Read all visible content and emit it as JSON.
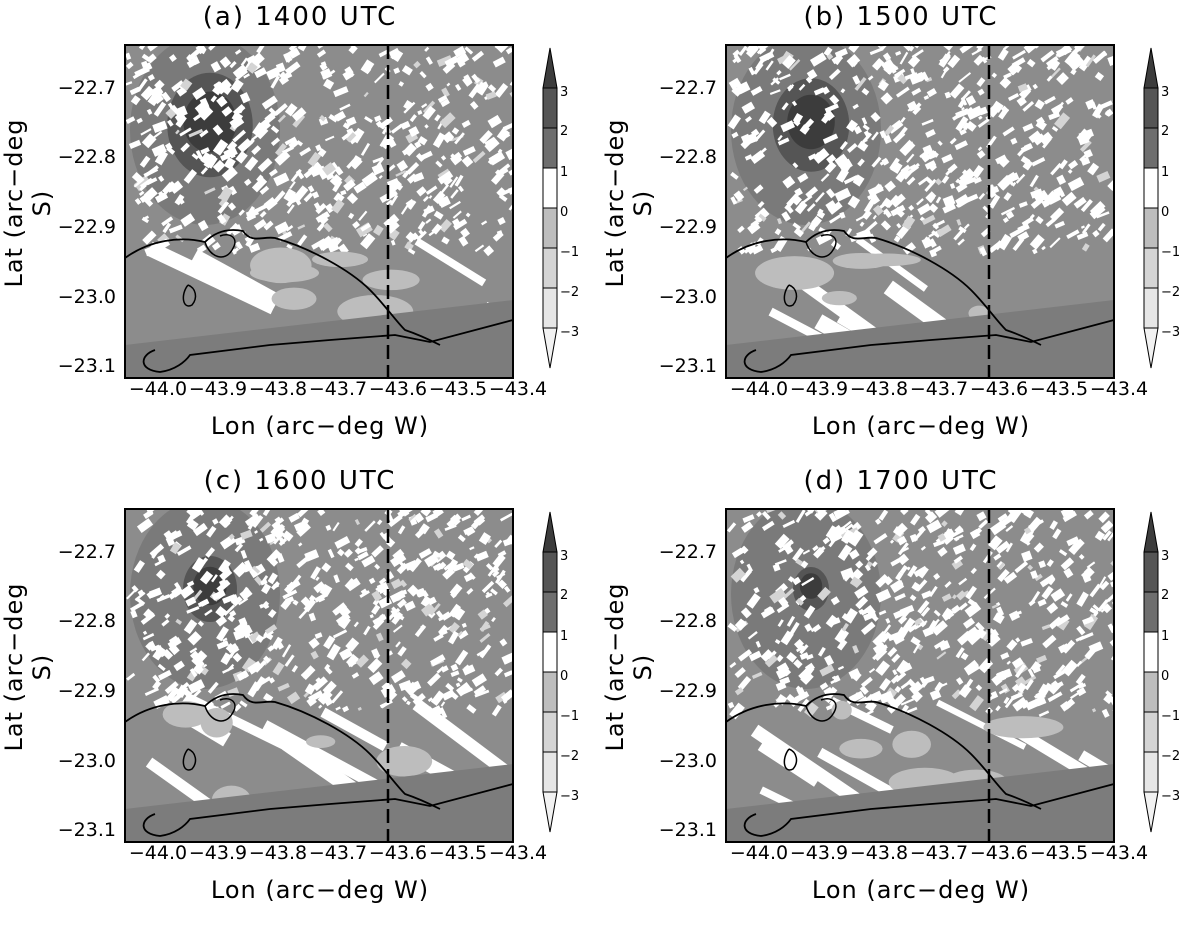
{
  "panels": [
    {
      "title": "(a)  1400  UTC",
      "seed": 11,
      "blob": 0.95,
      "stripes": 0.1
    },
    {
      "title": "(b)  1500  UTC",
      "seed": 23,
      "blob": 0.85,
      "stripes": 0.25
    },
    {
      "title": "(c)  1600  UTC",
      "seed": 37,
      "blob": 0.6,
      "stripes": 0.65
    },
    {
      "title": "(d)  1700  UTC",
      "seed": 51,
      "blob": 0.4,
      "stripes": 0.8
    }
  ],
  "axes": {
    "xlabel": "Lon (arc−deg W)",
    "ylabel": "Lat (arc−deg S)",
    "xticks": [
      "−44.0",
      "−43.9",
      "−43.8",
      "−43.7",
      "−43.6",
      "−43.5",
      "−43.4"
    ],
    "yticks": [
      "−22.7",
      "−22.8",
      "−22.9",
      "−23.0",
      "−23.1"
    ]
  },
  "colorbar": {
    "levels": [
      "3",
      "2",
      "1",
      "0",
      "−1",
      "−2",
      "−3"
    ],
    "colors": [
      "#3c3c3c",
      "#555555",
      "#6e6e6e",
      "#ffffff",
      "#bdbdbd",
      "#d4d4d4",
      "#e6e6e6"
    ]
  }
}
